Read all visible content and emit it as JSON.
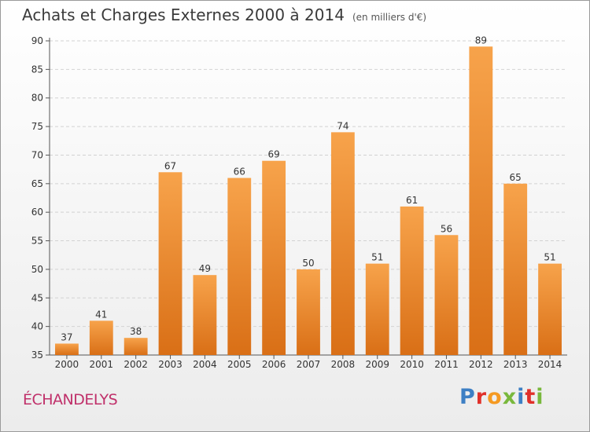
{
  "header": {
    "title": "Achats et Charges Externes 2000 à 2014",
    "unit": "(en milliers d'€)"
  },
  "footer": {
    "commune": "ÉCHANDELYS",
    "logo": "Proxiti"
  },
  "colors": {
    "bar_light": "#f7a34b",
    "bar_dark": "#d96f16",
    "commune": "#c0306a",
    "logo_letters": [
      "#3d7fc4",
      "#e0302a",
      "#f59a22",
      "#79b83c",
      "#3d7fc4",
      "#e0302a",
      "#79b83c"
    ]
  },
  "chart_data": {
    "type": "bar",
    "title": "Achats et Charges Externes 2000 à 2014",
    "categories": [
      "2000",
      "2001",
      "2002",
      "2003",
      "2004",
      "2005",
      "2006",
      "2007",
      "2008",
      "2009",
      "2010",
      "2011",
      "2012",
      "2013",
      "2014"
    ],
    "values": [
      37,
      41,
      38,
      67,
      49,
      66,
      69,
      50,
      74,
      51,
      61,
      56,
      89,
      65,
      51
    ],
    "ylim": [
      35,
      90
    ],
    "yticks": [
      35,
      40,
      45,
      50,
      55,
      60,
      65,
      70,
      75,
      80,
      85,
      90
    ],
    "grid": true,
    "data_labels": true
  }
}
